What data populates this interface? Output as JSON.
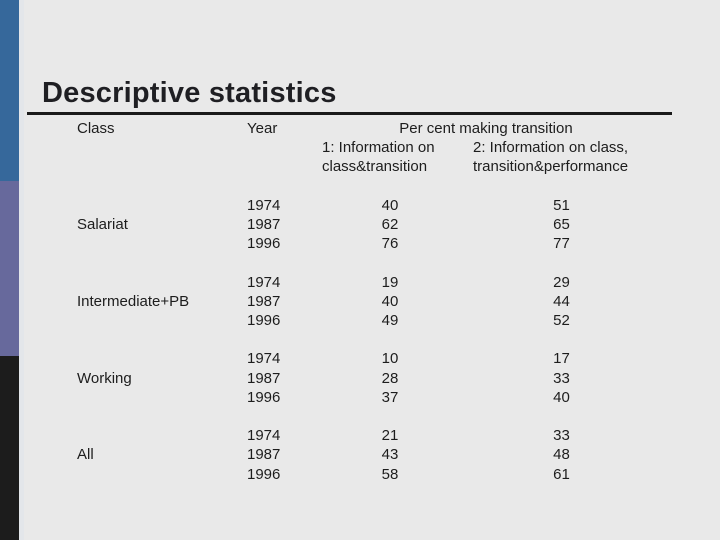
{
  "slide": {
    "title": "Descriptive statistics"
  },
  "table": {
    "headers": {
      "class": "Class",
      "year": "Year",
      "span": "Per cent making transition",
      "col1_line1": "1: Information on",
      "col1_line2": "class&transition",
      "col2_line1": "2: Information on class,",
      "col2_line2": "transition&performance"
    },
    "groups": [
      {
        "class": "Salariat",
        "rows": [
          {
            "year": "1974",
            "v1": "40",
            "v2": "51"
          },
          {
            "year": "1987",
            "v1": "62",
            "v2": "65"
          },
          {
            "year": "1996",
            "v1": "76",
            "v2": "77"
          }
        ]
      },
      {
        "class": "Intermediate+PB",
        "rows": [
          {
            "year": "1974",
            "v1": "19",
            "v2": "29"
          },
          {
            "year": "1987",
            "v1": "40",
            "v2": "44"
          },
          {
            "year": "1996",
            "v1": "49",
            "v2": "52"
          }
        ]
      },
      {
        "class": "Working",
        "rows": [
          {
            "year": "1974",
            "v1": "10",
            "v2": "17"
          },
          {
            "year": "1987",
            "v1": "28",
            "v2": "33"
          },
          {
            "year": "1996",
            "v1": "37",
            "v2": "40"
          }
        ]
      },
      {
        "class": "All",
        "rows": [
          {
            "year": "1974",
            "v1": "21",
            "v2": "33"
          },
          {
            "year": "1987",
            "v1": "43",
            "v2": "48"
          },
          {
            "year": "1996",
            "v1": "58",
            "v2": "61"
          }
        ]
      }
    ]
  },
  "colors": {
    "sidebar_blue": "#36689b",
    "sidebar_purple": "#67699c",
    "sidebar_black": "#1c1c1c",
    "background": "#e9e9e9",
    "rule": "#1a1a1a",
    "text": "#1d1d1d"
  }
}
